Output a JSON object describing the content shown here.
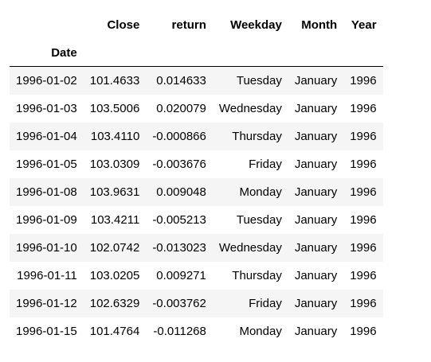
{
  "table": {
    "columns": [
      "Close",
      "return",
      "Weekday",
      "Month",
      "Year"
    ],
    "index_name": "Date",
    "rows": [
      {
        "date": "1996-01-02",
        "close": "101.4633",
        "return": "0.014633",
        "weekday": "Tuesday",
        "month": "January",
        "year": "1996"
      },
      {
        "date": "1996-01-03",
        "close": "103.5006",
        "return": "0.020079",
        "weekday": "Wednesday",
        "month": "January",
        "year": "1996"
      },
      {
        "date": "1996-01-04",
        "close": "103.4110",
        "return": "-0.000866",
        "weekday": "Thursday",
        "month": "January",
        "year": "1996"
      },
      {
        "date": "1996-01-05",
        "close": "103.0309",
        "return": "-0.003676",
        "weekday": "Friday",
        "month": "January",
        "year": "1996"
      },
      {
        "date": "1996-01-08",
        "close": "103.9631",
        "return": "0.009048",
        "weekday": "Monday",
        "month": "January",
        "year": "1996"
      },
      {
        "date": "1996-01-09",
        "close": "103.4211",
        "return": "-0.005213",
        "weekday": "Tuesday",
        "month": "January",
        "year": "1996"
      },
      {
        "date": "1996-01-10",
        "close": "102.0742",
        "return": "-0.013023",
        "weekday": "Wednesday",
        "month": "January",
        "year": "1996"
      },
      {
        "date": "1996-01-11",
        "close": "103.0205",
        "return": "0.009271",
        "weekday": "Thursday",
        "month": "January",
        "year": "1996"
      },
      {
        "date": "1996-01-12",
        "close": "102.6329",
        "return": "-0.003762",
        "weekday": "Friday",
        "month": "January",
        "year": "1996"
      },
      {
        "date": "1996-01-15",
        "close": "101.4764",
        "return": "-0.011268",
        "weekday": "Monday",
        "month": "January",
        "year": "1996"
      }
    ]
  }
}
